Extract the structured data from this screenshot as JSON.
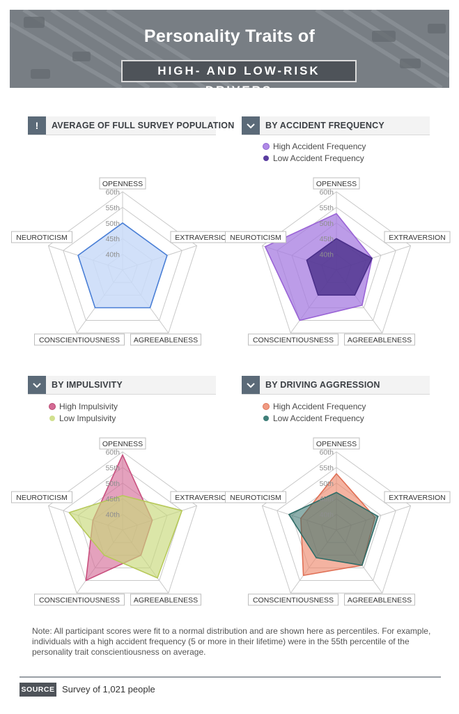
{
  "title": "Personality Traits of",
  "subtitle": "HIGH- AND LOW-RISK DRIVERS",
  "colors": {
    "full_population": "#4a7fd6",
    "high_accident": "#9a64d6",
    "low_accident": "#4a2f8a",
    "high_impulsivity": "#c9507f",
    "low_impulsivity": "#c7d97a",
    "high_aggression": "#e87f62",
    "low_aggression": "#2f6d68"
  },
  "chart_data": [
    {
      "type": "radar",
      "title": "AVERAGE OF FULL SURVEY POPULATION",
      "axes": [
        "OPENNESS",
        "EXTRAVERSION",
        "AGREEABLENESS",
        "CONSCIENTIOUSNESS",
        "NEUROTICISM"
      ],
      "tick_labels": [
        "40th",
        "45th",
        "50th",
        "55th",
        "60th"
      ],
      "range": [
        35,
        60
      ],
      "series": [
        {
          "name": "",
          "values": [
            50,
            50,
            50,
            50,
            50
          ]
        }
      ]
    },
    {
      "type": "radar",
      "title": "BY ACCIDENT FREQUENCY",
      "axes": [
        "OPENNESS",
        "EXTRAVERSION",
        "AGREEABLENESS",
        "CONSCIENTIOUSNESS",
        "NEUROTICISM"
      ],
      "tick_labels": [
        "40th",
        "45th",
        "50th",
        "55th",
        "60th"
      ],
      "range": [
        35,
        60
      ],
      "series": [
        {
          "name": "High Accident Frequency",
          "values": [
            53,
            47,
            49,
            55,
            59
          ]
        },
        {
          "name": "Low Accident Frequency",
          "values": [
            45,
            47,
            45,
            45,
            45
          ]
        }
      ]
    },
    {
      "type": "radar",
      "title": "BY IMPULSIVITY",
      "axes": [
        "OPENNESS",
        "EXTRAVERSION",
        "AGREEABLENESS",
        "CONSCIENTIOUSNESS",
        "NEUROTICISM"
      ],
      "tick_labels": [
        "40th",
        "45th",
        "50th",
        "55th",
        "60th"
      ],
      "range": [
        35,
        60
      ],
      "series": [
        {
          "name": "High Impulsivity",
          "values": [
            59,
            45,
            45,
            55,
            45
          ]
        },
        {
          "name": "Low Impulsivity",
          "values": [
            46,
            55,
            54,
            45,
            53
          ]
        }
      ]
    },
    {
      "type": "radar",
      "title": "BY DRIVING AGGRESSION",
      "axes": [
        "OPENNESS",
        "EXTRAVERSION",
        "AGREEABLENESS",
        "CONSCIENTIOUSNESS",
        "NEUROTICISM"
      ],
      "tick_labels": [
        "40th",
        "45th",
        "50th",
        "55th",
        "60th"
      ],
      "range": [
        35,
        60
      ],
      "series": [
        {
          "name": "High Accident Frequency",
          "values": [
            53,
            48,
            49,
            53,
            47
          ]
        },
        {
          "name": "Low Accident Frequency",
          "values": [
            47,
            49,
            49,
            46,
            51
          ]
        }
      ]
    }
  ],
  "note": "Note: All participant scores were fit to a normal distribution and are shown here as percentiles. For example, individuals with a high accident frequency (5 or more in their lifetime) were in the 55th percentile of the personality trait conscientiousness on average.",
  "source": {
    "label": "SOURCE",
    "text": "Survey of 1,021 people"
  },
  "icons": {
    "panel1": "exclamation-icon",
    "panels": "chevron-down-icon"
  }
}
